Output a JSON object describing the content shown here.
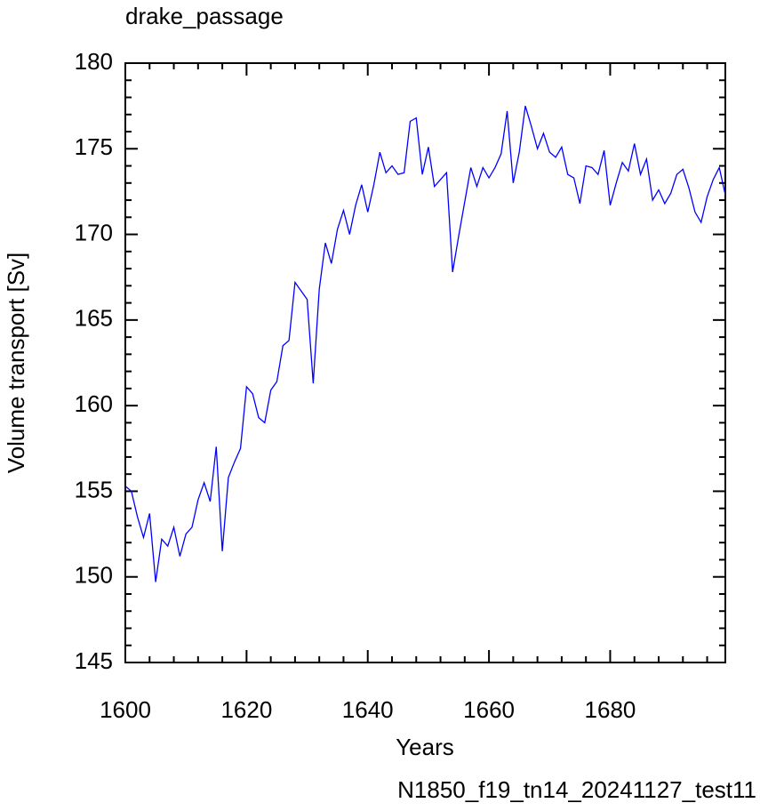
{
  "chart_data": {
    "type": "line",
    "title": "drake_passage",
    "x_label": "Years",
    "y_label": "Volume transport [Sv]",
    "annotation": "N1850_f19_tn14_20241127_test11",
    "x": [
      1600,
      1601,
      1602,
      1603,
      1604,
      1605,
      1606,
      1607,
      1608,
      1609,
      1610,
      1611,
      1612,
      1613,
      1614,
      1615,
      1616,
      1617,
      1618,
      1619,
      1620,
      1621,
      1622,
      1623,
      1624,
      1625,
      1626,
      1627,
      1628,
      1629,
      1630,
      1631,
      1632,
      1633,
      1634,
      1635,
      1636,
      1637,
      1638,
      1639,
      1640,
      1641,
      1642,
      1643,
      1644,
      1645,
      1646,
      1647,
      1648,
      1649,
      1650,
      1651,
      1652,
      1653,
      1654,
      1655,
      1656,
      1657,
      1658,
      1659,
      1660,
      1661,
      1662,
      1663,
      1664,
      1665,
      1666,
      1667,
      1668,
      1669,
      1670,
      1671,
      1672,
      1673,
      1674,
      1675,
      1676,
      1677,
      1678,
      1679,
      1680,
      1681,
      1682,
      1683,
      1684,
      1685,
      1686,
      1687,
      1688,
      1689,
      1690,
      1691,
      1692,
      1693,
      1694,
      1695,
      1696,
      1697,
      1698,
      1699
    ],
    "series": [
      {
        "color": "#0000ff",
        "values": [
          155.3,
          155.0,
          153.5,
          152.3,
          153.7,
          149.7,
          152.2,
          151.8,
          152.9,
          151.2,
          152.5,
          152.9,
          154.5,
          155.5,
          154.4,
          157.6,
          151.5,
          155.8,
          156.7,
          157.5,
          161.1,
          160.7,
          159.3,
          159.0,
          160.9,
          161.4,
          163.5,
          163.8,
          167.2,
          166.7,
          166.2,
          161.3,
          166.8,
          169.5,
          168.3,
          170.3,
          171.4,
          170.0,
          171.7,
          172.9,
          171.3,
          172.9,
          174.8,
          173.6,
          174.0,
          173.5,
          173.6,
          176.6,
          176.8,
          173.5,
          175.1,
          172.8,
          173.2,
          173.6,
          167.8,
          169.9,
          171.9,
          173.9,
          172.8,
          173.9,
          173.3,
          173.9,
          174.7,
          177.2,
          173.0,
          174.8,
          177.5,
          176.3,
          175.0,
          175.9,
          174.8,
          174.5,
          175.1,
          173.5,
          173.3,
          171.8,
          174.0,
          173.9,
          173.5,
          174.9,
          171.7,
          173.0,
          174.2,
          173.7,
          175.3,
          173.5,
          174.4,
          172.0,
          172.6,
          171.8,
          172.4,
          173.5,
          173.8,
          172.7,
          171.3,
          170.7,
          172.2,
          173.2,
          173.9,
          172.3
        ]
      }
    ],
    "xlim": [
      1600,
      1699
    ],
    "ylim": [
      145,
      180
    ],
    "xticks": [
      1600,
      1620,
      1640,
      1660,
      1680
    ],
    "yticks": [
      145,
      150,
      155,
      160,
      165,
      170,
      175,
      180
    ],
    "annotation_color": "#0000ff"
  }
}
